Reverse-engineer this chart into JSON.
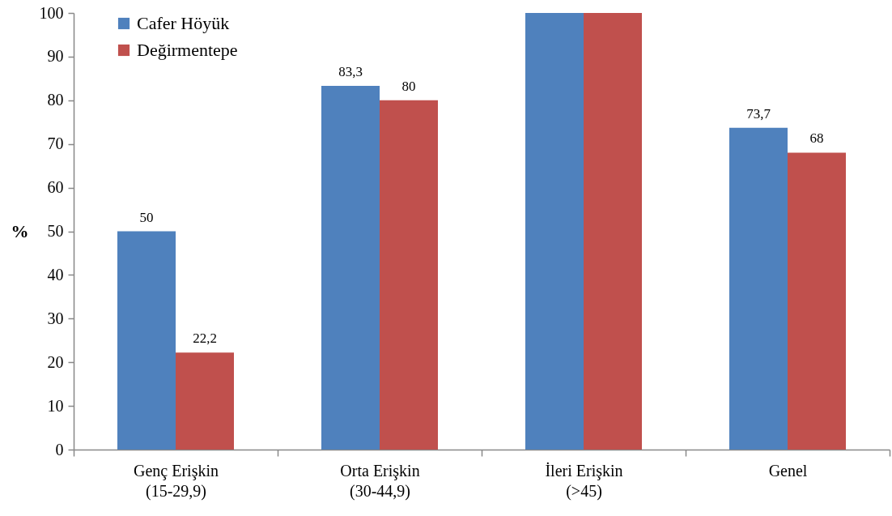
{
  "chart_data": {
    "type": "bar",
    "ylabel": "%",
    "categories": [
      "Genç Erişkin\n(15-29,9)",
      "Orta Erişkin\n(30-44,9)",
      "İleri Erişkin\n(>45)",
      "Genel"
    ],
    "series": [
      {
        "name": "Cafer Höyük",
        "color": "#4f81bd",
        "values": [
          50,
          83.3,
          100,
          73.7
        ],
        "value_labels": [
          "50",
          "83,3",
          null,
          "73,7"
        ]
      },
      {
        "name": "Değirmentepe",
        "color": "#c0504d",
        "values": [
          22.2,
          80,
          100,
          68
        ],
        "value_labels": [
          "22,2",
          "80",
          null,
          "68"
        ]
      }
    ],
    "ylim": [
      0,
      100
    ],
    "yticks": [
      0,
      10,
      20,
      30,
      40,
      50,
      60,
      70,
      80,
      90,
      100
    ],
    "grid": false,
    "legend": "top left"
  }
}
